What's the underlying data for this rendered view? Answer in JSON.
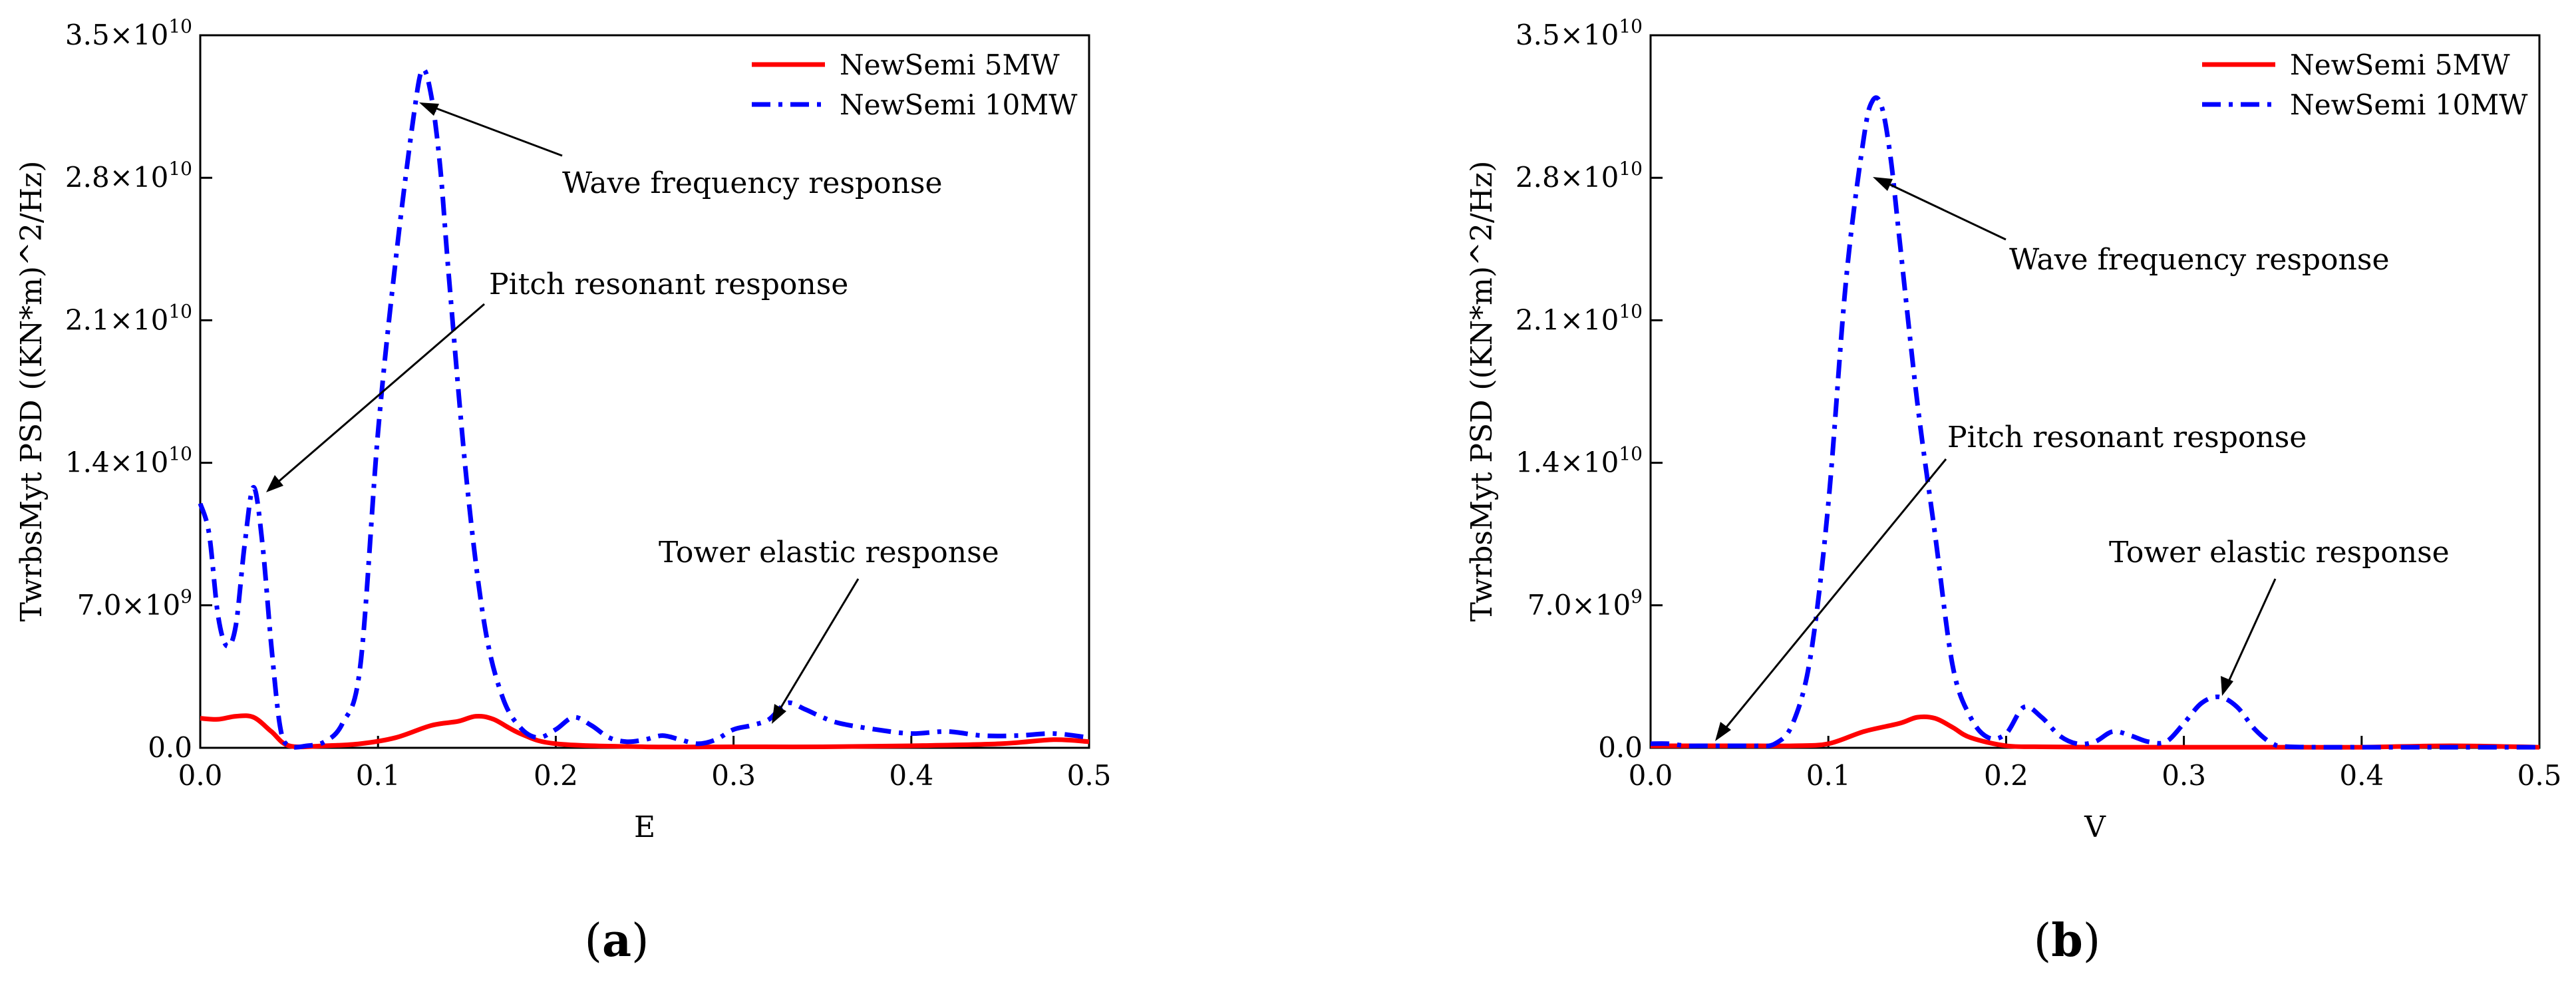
{
  "chart_data": [
    {
      "type": "line",
      "panel_label": "a",
      "xlabel": "E",
      "ylabel": "TwrbsMyt PSD ((KN*m)^2/Hz)",
      "xlim": [
        0,
        0.5
      ],
      "ylim": [
        0,
        35000000000.0
      ],
      "xticks": [
        "0.0",
        "0.1",
        "0.2",
        "0.3",
        "0.4",
        "0.5"
      ],
      "yticks": [
        {
          "value": 0,
          "mant": "0.0",
          "exp": ""
        },
        {
          "value": 7000000000.0,
          "mant": "7.0×10",
          "exp": "9"
        },
        {
          "value": 14000000000.0,
          "mant": "1.4×10",
          "exp": "10"
        },
        {
          "value": 21000000000.0,
          "mant": "2.1×10",
          "exp": "10"
        },
        {
          "value": 28000000000.0,
          "mant": "2.8×10",
          "exp": "10"
        },
        {
          "value": 35000000000.0,
          "mant": "3.5×10",
          "exp": "10"
        }
      ],
      "legend_position": "top-right",
      "series": [
        {
          "name": "NewSemi 5MW",
          "color": "#ff0000",
          "style": "solid",
          "x": [
            0,
            0.01,
            0.02,
            0.03,
            0.04,
            0.05,
            0.07,
            0.09,
            0.11,
            0.13,
            0.145,
            0.155,
            0.165,
            0.18,
            0.2,
            0.25,
            0.3,
            0.35,
            0.4,
            0.45,
            0.48,
            0.5
          ],
          "y": [
            1450000000.0,
            1400000000.0,
            1550000000.0,
            1500000000.0,
            800000000.0,
            100000000.0,
            100000000.0,
            200000000.0,
            500000000.0,
            1100000000.0,
            1300000000.0,
            1550000000.0,
            1400000000.0,
            700000000.0,
            200000000.0,
            50000000.0,
            50000000.0,
            50000000.0,
            100000000.0,
            200000000.0,
            400000000.0,
            300000000.0
          ]
        },
        {
          "name": "NewSemi 10MW",
          "color": "#0000ff",
          "style": "dashdot",
          "x": [
            0,
            0.005,
            0.01,
            0.015,
            0.02,
            0.025,
            0.03,
            0.035,
            0.04,
            0.045,
            0.05,
            0.06,
            0.07,
            0.08,
            0.09,
            0.1,
            0.11,
            0.12,
            0.125,
            0.13,
            0.135,
            0.14,
            0.15,
            0.16,
            0.17,
            0.18,
            0.19,
            0.2,
            0.21,
            0.22,
            0.23,
            0.24,
            0.25,
            0.26,
            0.27,
            0.28,
            0.29,
            0.3,
            0.31,
            0.32,
            0.33,
            0.34,
            0.35,
            0.36,
            0.38,
            0.4,
            0.42,
            0.44,
            0.46,
            0.48,
            0.5
          ],
          "y": [
            12000000000.0,
            10500000000.0,
            6500000000.0,
            5000000000.0,
            6000000000.0,
            10000000000.0,
            12800000000.0,
            10000000000.0,
            5000000000.0,
            1000000000.0,
            100000000.0,
            100000000.0,
            300000000.0,
            1200000000.0,
            4000000000.0,
            15500000000.0,
            24000000000.0,
            31000000000.0,
            33300000000.0,
            32000000000.0,
            28500000000.0,
            23000000000.0,
            13000000000.0,
            6000000000.0,
            2500000000.0,
            1000000000.0,
            500000000.0,
            900000000.0,
            1500000000.0,
            1100000000.0,
            500000000.0,
            300000000.0,
            400000000.0,
            600000000.0,
            400000000.0,
            200000000.0,
            400000000.0,
            900000000.0,
            1100000000.0,
            1400000000.0,
            2200000000.0,
            1900000000.0,
            1500000000.0,
            1200000000.0,
            900000000.0,
            700000000.0,
            800000000.0,
            600000000.0,
            600000000.0,
            700000000.0,
            500000000.0
          ]
        }
      ],
      "annotations": [
        {
          "text": "Wave frequency response",
          "x": 0.12,
          "y": 31000000000.0
        },
        {
          "text": "Pitch resonant response",
          "x": 0.035,
          "y": 12800000000.0
        },
        {
          "text": "Tower elastic response",
          "x": 0.32,
          "y": 1500000000.0
        }
      ]
    },
    {
      "type": "line",
      "panel_label": "b",
      "xlabel": "V",
      "ylabel": "TwrbsMyt PSD ((KN*m)^2/Hz)",
      "xlim": [
        0,
        0.5
      ],
      "ylim": [
        0,
        35000000000.0
      ],
      "xticks": [
        "0.0",
        "0.1",
        "0.2",
        "0.3",
        "0.4",
        "0.5"
      ],
      "yticks": [
        {
          "value": 0,
          "mant": "0.0",
          "exp": ""
        },
        {
          "value": 7000000000.0,
          "mant": "7.0×10",
          "exp": "9"
        },
        {
          "value": 14000000000.0,
          "mant": "1.4×10",
          "exp": "10"
        },
        {
          "value": 21000000000.0,
          "mant": "2.1×10",
          "exp": "10"
        },
        {
          "value": 28000000000.0,
          "mant": "2.8×10",
          "exp": "10"
        },
        {
          "value": 35000000000.0,
          "mant": "3.5×10",
          "exp": "10"
        }
      ],
      "legend_position": "top-right",
      "series": [
        {
          "name": "NewSemi 5MW",
          "color": "#ff0000",
          "style": "solid",
          "x": [
            0,
            0.02,
            0.05,
            0.08,
            0.1,
            0.12,
            0.14,
            0.15,
            0.16,
            0.17,
            0.18,
            0.2,
            0.22,
            0.25,
            0.3,
            0.35,
            0.4,
            0.45,
            0.5
          ],
          "y": [
            100000000.0,
            100000000.0,
            100000000.0,
            100000000.0,
            200000000.0,
            800000000.0,
            1200000000.0,
            1500000000.0,
            1450000000.0,
            1000000000.0,
            500000000.0,
            100000000.0,
            50000000.0,
            30000000.0,
            30000000.0,
            30000000.0,
            30000000.0,
            100000000.0,
            30000000.0
          ]
        },
        {
          "name": "NewSemi 10MW",
          "color": "#0000ff",
          "style": "dashdot",
          "x": [
            0,
            0.01,
            0.02,
            0.03,
            0.04,
            0.05,
            0.06,
            0.07,
            0.08,
            0.09,
            0.1,
            0.11,
            0.12,
            0.125,
            0.13,
            0.135,
            0.14,
            0.15,
            0.16,
            0.17,
            0.18,
            0.19,
            0.2,
            0.21,
            0.22,
            0.23,
            0.24,
            0.25,
            0.26,
            0.27,
            0.28,
            0.29,
            0.3,
            0.31,
            0.32,
            0.33,
            0.34,
            0.35,
            0.36,
            0.4,
            0.45,
            0.5
          ],
          "y": [
            200000000.0,
            200000000.0,
            100000000.0,
            100000000.0,
            100000000.0,
            100000000.0,
            100000000.0,
            200000000.0,
            1200000000.0,
            4500000000.0,
            12000000000.0,
            23000000000.0,
            30000000000.0,
            31800000000.0,
            31500000000.0,
            29000000000.0,
            25000000000.0,
            17000000000.0,
            10500000000.0,
            4000000000.0,
            1500000000.0,
            500000000.0,
            700000000.0,
            2000000000.0,
            1500000000.0,
            600000000.0,
            200000000.0,
            300000000.0,
            800000000.0,
            600000000.0,
            300000000.0,
            300000000.0,
            1200000000.0,
            2200000000.0,
            2500000000.0,
            2000000000.0,
            900000000.0,
            200000000.0,
            50000000.0,
            30000000.0,
            30000000.0,
            30000000.0
          ]
        }
      ],
      "annotations": [
        {
          "text": "Wave frequency response",
          "x": 0.13,
          "y": 28000000000.0
        },
        {
          "text": "Pitch resonant response",
          "x": 0.035,
          "y": 300000000.0
        },
        {
          "text": "Tower elastic response",
          "x": 0.32,
          "y": 2500000000.0
        }
      ]
    }
  ]
}
